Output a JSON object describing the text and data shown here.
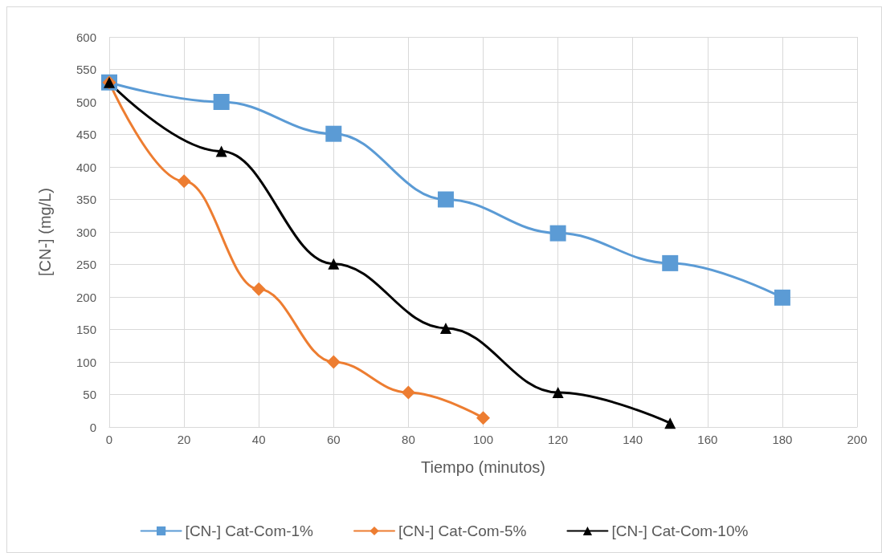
{
  "chart_data": {
    "type": "line",
    "xlabel": "Tiempo (minutos)",
    "ylabel": "[CN-] (mg/L)",
    "xlim": [
      0,
      200
    ],
    "xticks": [
      0,
      20,
      40,
      60,
      80,
      100,
      120,
      140,
      160,
      180,
      200
    ],
    "ylim": [
      0,
      600
    ],
    "yticks": [
      0,
      50,
      100,
      150,
      200,
      250,
      300,
      350,
      400,
      450,
      500,
      550,
      600
    ],
    "grid": true,
    "legend": "bottom",
    "line_style": "solid",
    "series": [
      {
        "name": "[CN-] Cat-Com-1%",
        "color": "#5b9bd5",
        "marker": "square",
        "x": [
          0,
          30,
          60,
          90,
          120,
          150,
          180
        ],
        "values": [
          530,
          500,
          451,
          350,
          298,
          252,
          199
        ]
      },
      {
        "name": "[CN-] Cat-Com-5%",
        "color": "#ed7d31",
        "marker": "diamond",
        "x": [
          0,
          20,
          40,
          60,
          80,
          100
        ],
        "values": [
          530,
          378,
          212,
          100,
          53,
          14
        ]
      },
      {
        "name": "[CN-] Cat-Com-10%",
        "color": "#000000",
        "marker": "triangle",
        "x": [
          0,
          30,
          60,
          90,
          120,
          150
        ],
        "values": [
          530,
          424,
          251,
          152,
          53,
          6
        ]
      }
    ]
  }
}
